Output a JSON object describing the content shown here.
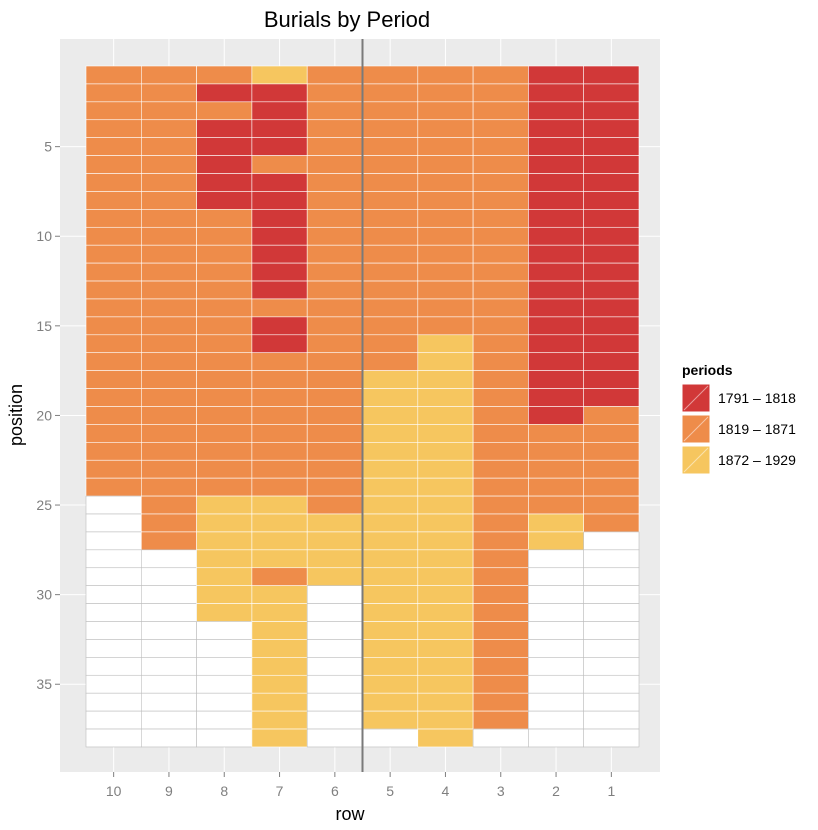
{
  "chart_data": {
    "type": "heatmap",
    "title": "Burials by Period",
    "xlabel": "row",
    "ylabel": "position",
    "x_categories": [
      "10",
      "9",
      "8",
      "7",
      "6",
      "5",
      "4",
      "3",
      "2",
      "1"
    ],
    "y_ticks": [
      5,
      10,
      15,
      20,
      25,
      30,
      35
    ],
    "ylim": [
      39.5,
      0.5
    ],
    "y_reversed": true,
    "grid": true,
    "divider_between": [
      "6",
      "5"
    ],
    "legend": {
      "title": "periods",
      "placement": "right",
      "entries": [
        {
          "label": "1791 – 1818",
          "color": "#d13838"
        },
        {
          "label": "1819 – 1871",
          "color": "#ee8c4a"
        },
        {
          "label": "1872 – 1929",
          "color": "#f6c65f"
        }
      ]
    },
    "empty_color": "#ffffff",
    "columns": [
      {
        "row": "10",
        "max_position": 38,
        "periods": [
          {
            "from": 1,
            "to": 24,
            "period": 1
          }
        ]
      },
      {
        "row": "9",
        "max_position": 38,
        "periods": [
          {
            "from": 1,
            "to": 27,
            "period": 1
          }
        ]
      },
      {
        "row": "8",
        "max_position": 38,
        "periods": [
          {
            "from": 1,
            "to": 1,
            "period": 1
          },
          {
            "from": 2,
            "to": 2,
            "period": 0
          },
          {
            "from": 3,
            "to": 3,
            "period": 1
          },
          {
            "from": 4,
            "to": 8,
            "period": 0
          },
          {
            "from": 9,
            "to": 24,
            "period": 1
          },
          {
            "from": 25,
            "to": 31,
            "period": 2
          }
        ]
      },
      {
        "row": "7",
        "max_position": 38,
        "periods": [
          {
            "from": 1,
            "to": 1,
            "period": 2
          },
          {
            "from": 2,
            "to": 5,
            "period": 0
          },
          {
            "from": 6,
            "to": 6,
            "period": 1
          },
          {
            "from": 7,
            "to": 13,
            "period": 0
          },
          {
            "from": 14,
            "to": 14,
            "period": 1
          },
          {
            "from": 15,
            "to": 16,
            "period": 0
          },
          {
            "from": 17,
            "to": 24,
            "period": 1
          },
          {
            "from": 25,
            "to": 28,
            "period": 2
          },
          {
            "from": 29,
            "to": 29,
            "period": 1
          },
          {
            "from": 30,
            "to": 38,
            "period": 2
          }
        ]
      },
      {
        "row": "6",
        "max_position": 38,
        "periods": [
          {
            "from": 1,
            "to": 25,
            "period": 1
          },
          {
            "from": 26,
            "to": 29,
            "period": 2
          }
        ]
      },
      {
        "row": "5",
        "max_position": 38,
        "periods": [
          {
            "from": 1,
            "to": 17,
            "period": 1
          },
          {
            "from": 18,
            "to": 37,
            "period": 2
          }
        ]
      },
      {
        "row": "4",
        "max_position": 38,
        "periods": [
          {
            "from": 1,
            "to": 15,
            "period": 1
          },
          {
            "from": 16,
            "to": 38,
            "period": 2
          }
        ]
      },
      {
        "row": "3",
        "max_position": 38,
        "periods": [
          {
            "from": 1,
            "to": 37,
            "period": 1
          }
        ]
      },
      {
        "row": "2",
        "max_position": 38,
        "periods": [
          {
            "from": 1,
            "to": 20,
            "period": 0
          },
          {
            "from": 21,
            "to": 25,
            "period": 1
          },
          {
            "from": 26,
            "to": 27,
            "period": 2
          }
        ]
      },
      {
        "row": "1",
        "max_position": 38,
        "periods": [
          {
            "from": 1,
            "to": 19,
            "period": 0
          },
          {
            "from": 20,
            "to": 26,
            "period": 1
          }
        ]
      }
    ]
  }
}
